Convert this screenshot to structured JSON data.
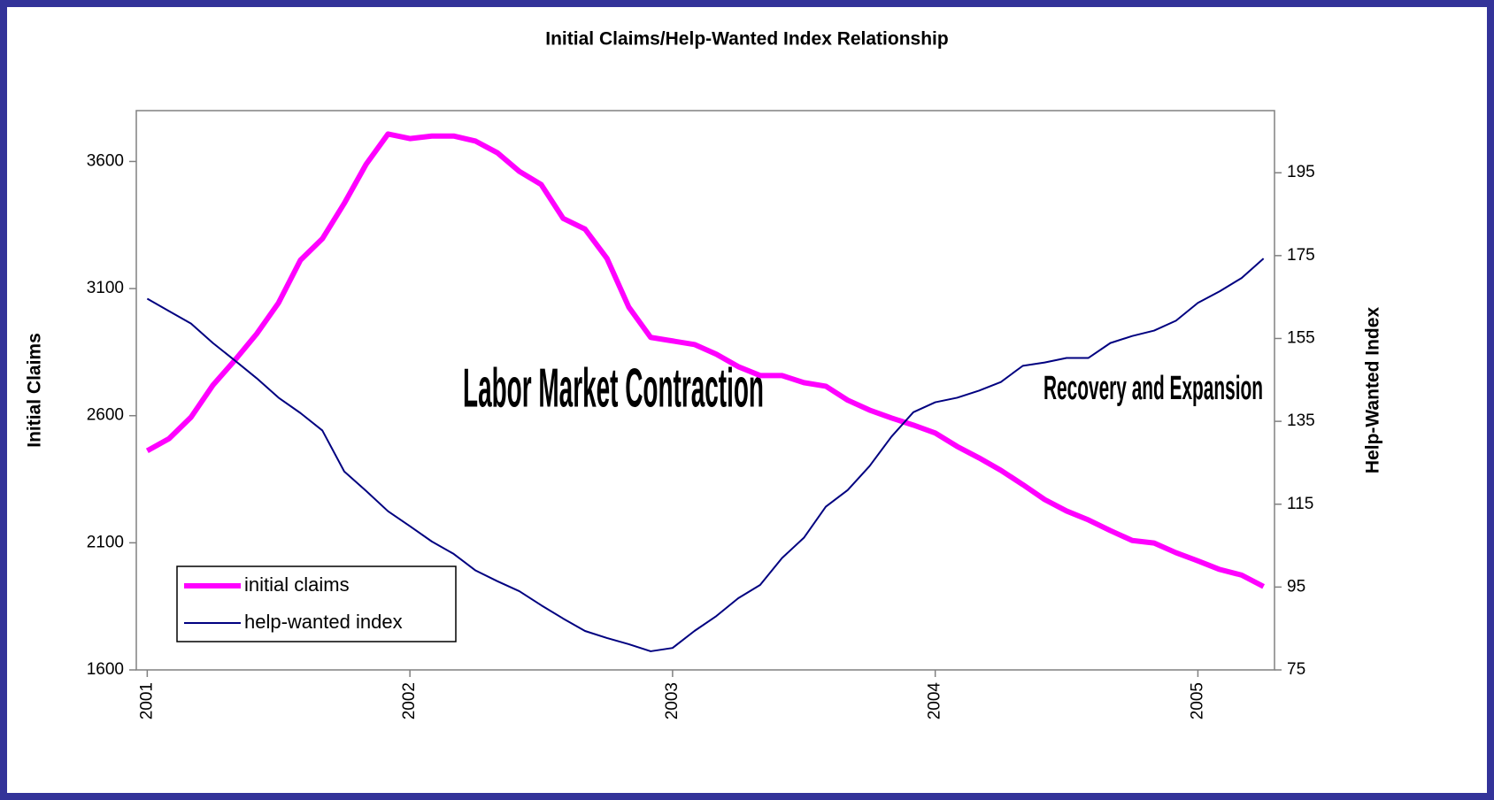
{
  "chart_data": {
    "type": "line",
    "title": "Initial Claims/Help-Wanted Index Relationship",
    "ylabel": "Initial Claims",
    "y2label": "Help-Wanted Index",
    "annotations": [
      "Labor Market Contraction",
      "Recovery and Expansion"
    ],
    "categories": [
      "2001",
      null,
      null,
      null,
      null,
      null,
      null,
      null,
      null,
      null,
      null,
      null,
      "2002",
      null,
      null,
      null,
      null,
      null,
      null,
      null,
      null,
      null,
      null,
      null,
      "2003",
      null,
      null,
      null,
      null,
      null,
      null,
      null,
      null,
      null,
      null,
      null,
      "2004",
      null,
      null,
      null,
      null,
      null,
      null,
      null,
      null,
      null,
      null,
      null,
      "2005",
      null,
      null,
      null
    ],
    "series": [
      {
        "name": "initial claims",
        "color": "#ff00ff",
        "axis": "y",
        "values": [
          2462,
          2510,
          2594,
          2720,
          2818,
          2922,
          3044,
          3212,
          3296,
          3435,
          3589,
          3708,
          3690,
          3700,
          3700,
          3680,
          3634,
          3561,
          3509,
          3376,
          3334,
          3219,
          3027,
          2908,
          2894,
          2880,
          2842,
          2793,
          2758,
          2758,
          2730,
          2716,
          2661,
          2622,
          2591,
          2563,
          2532,
          2479,
          2434,
          2385,
          2329,
          2270,
          2225,
          2190,
          2148,
          2109,
          2099,
          2061,
          2029,
          1995,
          1973,
          1928
        ]
      },
      {
        "name": "help-wanted index",
        "color": "#000080",
        "axis": "y2",
        "values": [
          164.6,
          161.6,
          158.6,
          153.9,
          149.7,
          145.4,
          140.7,
          137.0,
          132.8,
          122.9,
          118.2,
          113.3,
          109.7,
          106.0,
          103.0,
          99.0,
          96.4,
          94.0,
          90.6,
          87.4,
          84.4,
          82.7,
          81.2,
          79.5,
          80.3,
          84.4,
          88.0,
          92.3,
          95.5,
          102.0,
          106.9,
          114.4,
          118.4,
          124.2,
          131.3,
          137.2,
          139.6,
          140.7,
          142.4,
          144.5,
          148.4,
          149.2,
          150.3,
          150.3,
          153.9,
          155.6,
          156.9,
          159.3,
          163.6,
          166.4,
          169.6,
          174.3
        ]
      }
    ],
    "ylim": [
      1600,
      3800
    ],
    "yticks": [
      1600,
      2100,
      2600,
      3100,
      3600
    ],
    "y2lim": [
      75,
      210
    ],
    "y2ticks": [
      75,
      95,
      115,
      135,
      155,
      175,
      195
    ],
    "legend": "lower left"
  }
}
